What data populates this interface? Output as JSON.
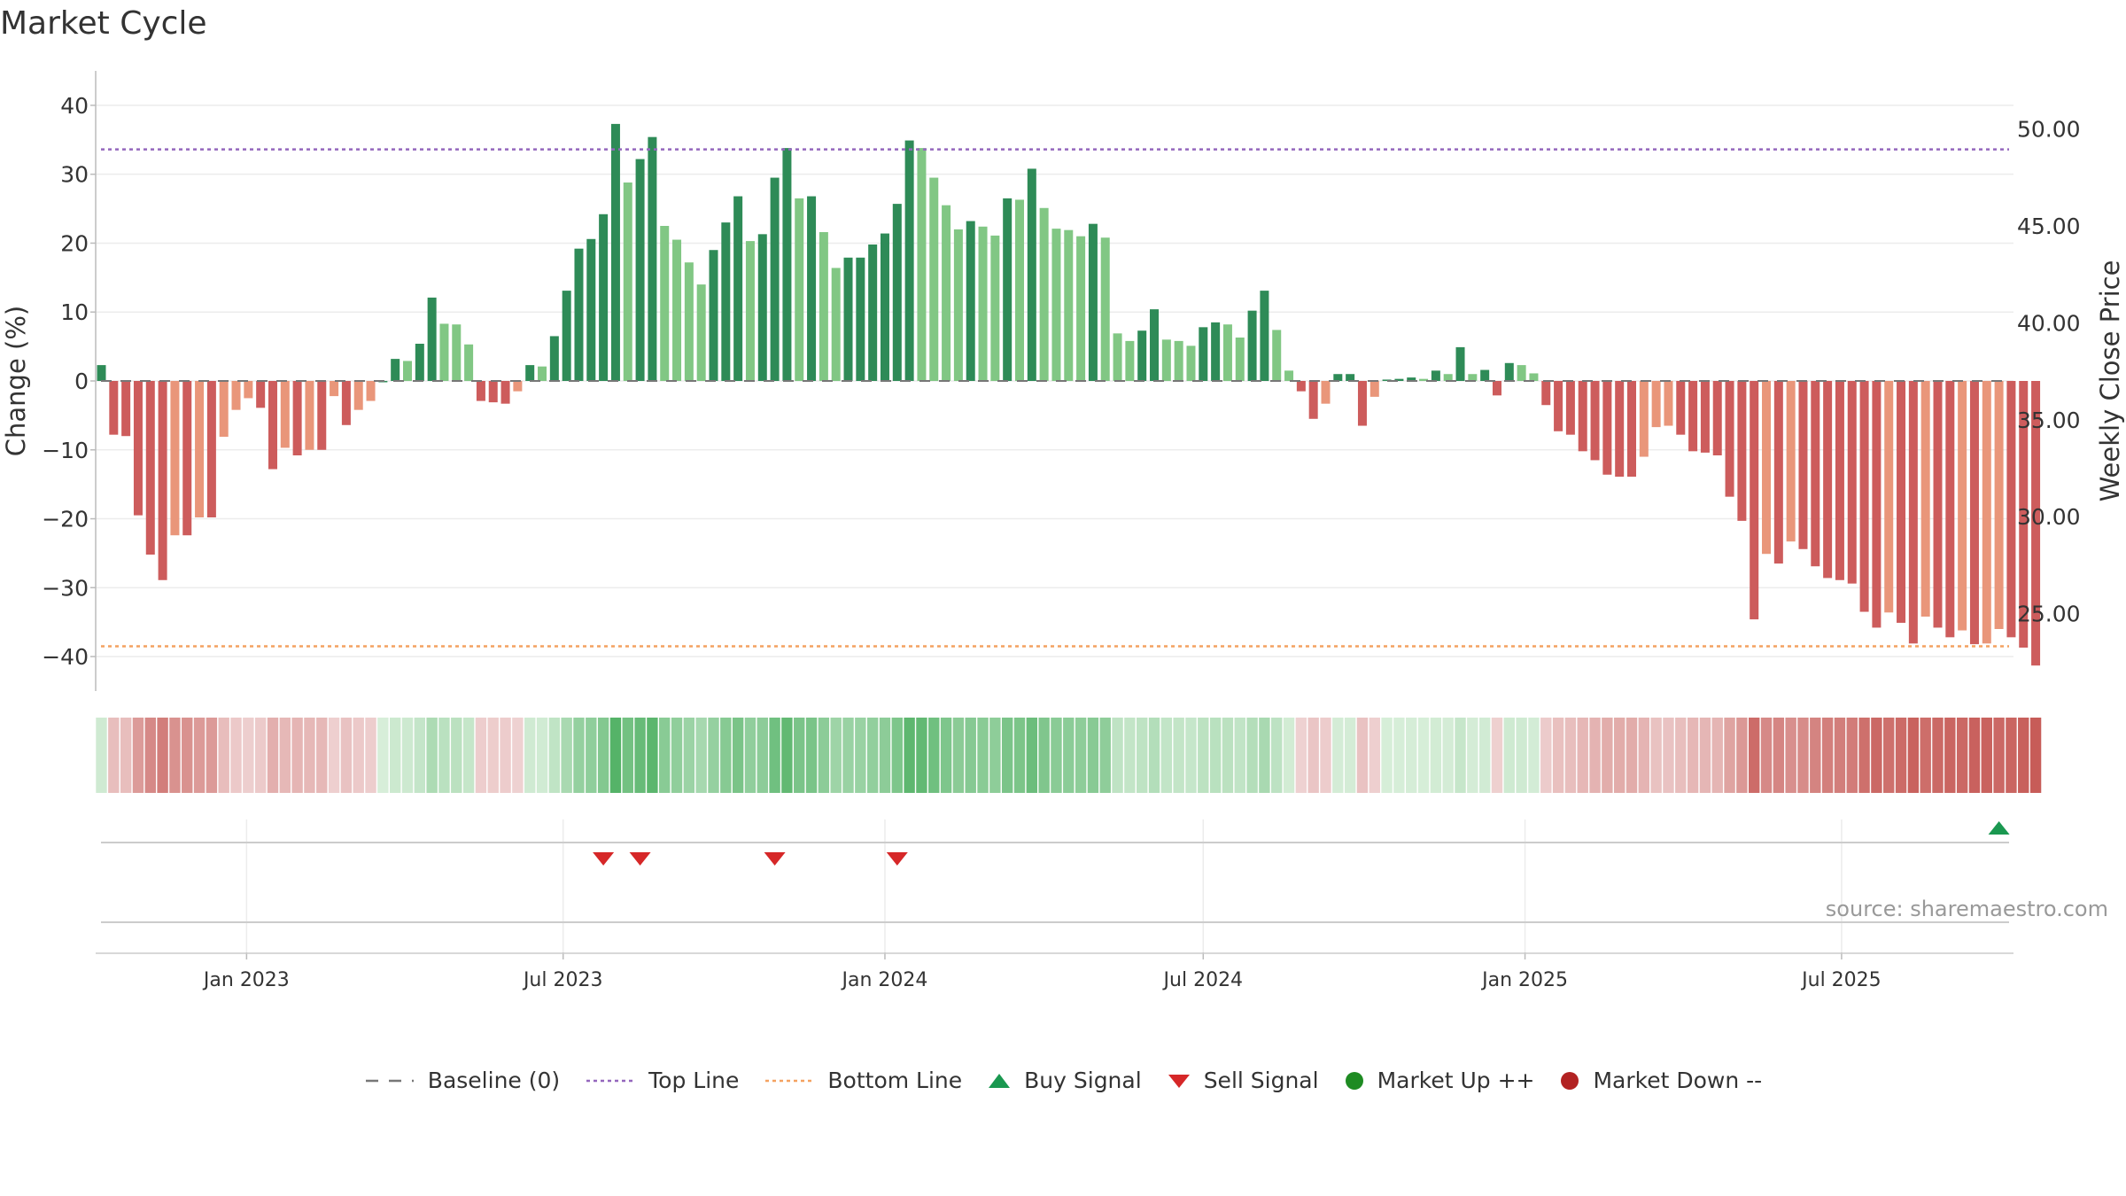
{
  "chart_data": {
    "type": "bar",
    "title": "Market Cycle",
    "ylabel": "Change (%)",
    "y2label": "Weekly Close Price",
    "ylim": [
      -45,
      45
    ],
    "y2lim": [
      21.0,
      53.0
    ],
    "yticks": [
      "40",
      "30",
      "20",
      "10",
      "0",
      "−10",
      "−20",
      "−30",
      "−40"
    ],
    "ytick_values": [
      40,
      30,
      20,
      10,
      0,
      -10,
      -20,
      -30,
      -40
    ],
    "y2ticks": [
      "50.00",
      "45.00",
      "40.00",
      "35.00",
      "30.00",
      "25.00"
    ],
    "y2tick_values": [
      50,
      45,
      40,
      35,
      30,
      25
    ],
    "x_start_date": "2022-10-10",
    "xticks": [
      {
        "label": "Jan 2023",
        "date": "2023-01-01"
      },
      {
        "label": "Jul 2023",
        "date": "2023-07-01"
      },
      {
        "label": "Jan 2024",
        "date": "2024-01-01"
      },
      {
        "label": "Jul 2024",
        "date": "2024-07-01"
      },
      {
        "label": "Jan 2025",
        "date": "2025-01-01"
      },
      {
        "label": "Jul 2025",
        "date": "2025-07-01"
      }
    ],
    "values": [
      2.3,
      -7.8,
      -8.0,
      -19.5,
      -25.2,
      -28.9,
      -22.4,
      -22.4,
      -19.8,
      -19.8,
      -8.1,
      -4.2,
      -2.5,
      -3.9,
      -12.8,
      -9.7,
      -10.8,
      -10.0,
      -10.0,
      -2.2,
      -6.4,
      -4.2,
      -2.9,
      0,
      3.2,
      2.9,
      5.4,
      12.1,
      8.3,
      8.2,
      5.3,
      -2.9,
      -3.1,
      -3.3,
      -1.5,
      2.3,
      2.1,
      6.5,
      13.1,
      19.2,
      20.6,
      24.2,
      37.3,
      28.8,
      32.2,
      35.4,
      22.5,
      20.5,
      17.2,
      14.0,
      19.0,
      23.0,
      26.8,
      20.3,
      21.3,
      29.5,
      33.8,
      26.5,
      26.8,
      21.6,
      16.4,
      17.9,
      17.9,
      19.8,
      21.4,
      25.7,
      34.9,
      33.8,
      29.5,
      25.5,
      22.0,
      23.2,
      22.4,
      21.1,
      26.5,
      26.3,
      30.8,
      25.1,
      22.1,
      21.9,
      21.0,
      22.8,
      20.8,
      6.9,
      5.8,
      7.3,
      10.4,
      6.0,
      5.8,
      5.1,
      7.8,
      8.5,
      8.2,
      6.3,
      10.2,
      13.1,
      7.4,
      1.5,
      -1.5,
      -5.5,
      -3.3,
      1.0,
      1.0,
      -6.5,
      -2.3,
      0.2,
      0.3,
      0.5,
      0.3,
      1.5,
      1.0,
      4.9,
      1.0,
      1.6,
      -2.1,
      2.6,
      2.3,
      1.1,
      -3.5,
      -7.3,
      -7.8,
      -10.2,
      -11.5,
      -13.6,
      -13.9,
      -13.9,
      -11.0,
      -6.7,
      -6.5,
      -7.8,
      -10.2,
      -10.4,
      -10.8,
      -16.8,
      -20.3,
      -34.6,
      -25.1,
      -26.5,
      -23.3,
      -24.4,
      -26.9,
      -28.6,
      -28.9,
      -29.4,
      -33.5,
      -35.8,
      -33.6,
      -35.1,
      -38.1,
      -34.2,
      -35.8,
      -37.2,
      -36.2,
      -38.2,
      -38.1,
      -36.0,
      -37.2,
      -38.7,
      -41.3
    ],
    "lines": [
      {
        "name": "Baseline (0)",
        "y": 0,
        "color": "#777777",
        "style": "dash"
      },
      {
        "name": "Top Line",
        "y": 33.6,
        "color": "#9467bd",
        "style": "dot"
      },
      {
        "name": "Bottom Line",
        "y": -38.5,
        "color": "#f4a261",
        "style": "dot"
      }
    ],
    "buy_signals": [
      155
    ],
    "sell_signals": [
      41,
      44,
      55,
      65
    ],
    "colors": {
      "up_strong": "#2e8b57",
      "up_weak": "#81c784",
      "down_strong": "#cd5c5c",
      "down_weak": "#e9967a",
      "buy": "#1a9850",
      "sell": "#d62728",
      "market_up": "#1e8b22",
      "market_down": "#b22222"
    },
    "legend": {
      "position": "bottom-center",
      "items": [
        {
          "name": "Baseline (0)",
          "symbol": "dash-line",
          "color": "#777777"
        },
        {
          "name": "Top Line",
          "symbol": "dot-line",
          "color": "#9467bd"
        },
        {
          "name": "Bottom Line",
          "symbol": "dot-line",
          "color": "#f4a261"
        },
        {
          "name": "Buy Signal",
          "symbol": "triangle-up",
          "color": "#1a9850"
        },
        {
          "name": "Sell Signal",
          "symbol": "triangle-down",
          "color": "#d62728"
        },
        {
          "name": "Market Up ++",
          "symbol": "circle",
          "color": "#1e8b22"
        },
        {
          "name": "Market Down --",
          "symbol": "circle",
          "color": "#b22222"
        }
      ]
    },
    "source": "source: sharemaestro.com"
  }
}
